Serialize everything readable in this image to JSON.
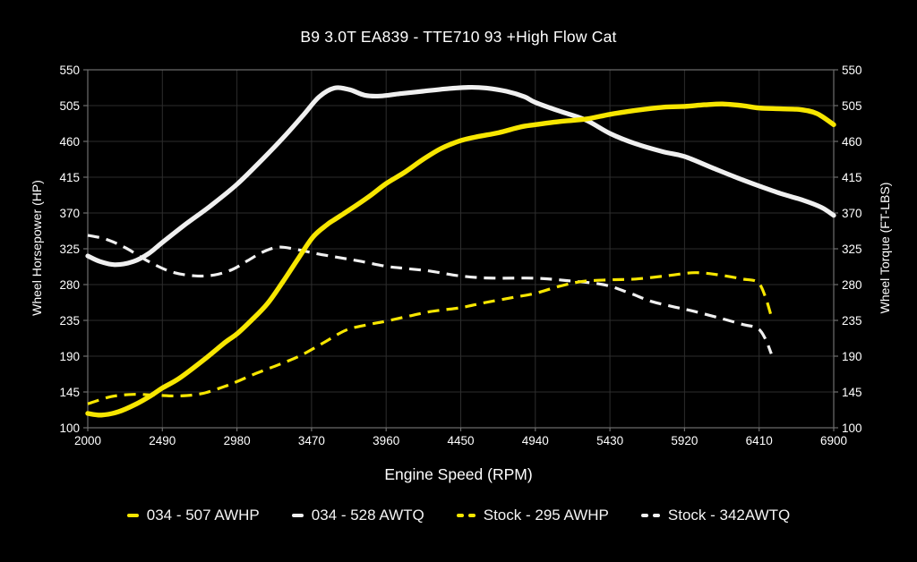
{
  "window": {
    "background": "#000000"
  },
  "chart_data": {
    "type": "line",
    "title": "B9 3.0T EA839 - TTE710 93 +High Flow Cat",
    "xlabel": "Engine Speed (RPM)",
    "ylabel_left": "Wheel Horsepower (HP)",
    "ylabel_right": "Wheel Torque (FT-LBS)",
    "xlim": [
      2000,
      6900
    ],
    "ylim": [
      100,
      550
    ],
    "x_ticks": [
      2000,
      2490,
      2980,
      3470,
      3960,
      4450,
      4940,
      5430,
      5920,
      6410,
      6900
    ],
    "y_ticks": [
      100,
      145,
      190,
      235,
      280,
      325,
      370,
      415,
      460,
      505,
      550
    ],
    "grid": true,
    "legend_position": "bottom",
    "colors": {
      "background": "#000000",
      "gridline": "#2d2d2d",
      "frame": "#6e6e6e",
      "text": "#ffffff",
      "yellow": "#f7e600",
      "white": "#f0f0f0"
    },
    "series": [
      {
        "name": "stock-awtq",
        "legend_label": "Stock - 342AWTQ",
        "color": "#f0f0f0",
        "dash": true,
        "width": 3.2,
        "points": [
          [
            2000,
            342
          ],
          [
            2120,
            337
          ],
          [
            2250,
            326
          ],
          [
            2400,
            309
          ],
          [
            2550,
            296
          ],
          [
            2700,
            291
          ],
          [
            2830,
            292
          ],
          [
            2950,
            299
          ],
          [
            3050,
            310
          ],
          [
            3150,
            321
          ],
          [
            3250,
            327
          ],
          [
            3350,
            325
          ],
          [
            3500,
            319
          ],
          [
            3650,
            314
          ],
          [
            3800,
            309
          ],
          [
            3960,
            303
          ],
          [
            4100,
            300
          ],
          [
            4250,
            297
          ],
          [
            4400,
            292
          ],
          [
            4550,
            289
          ],
          [
            4700,
            288
          ],
          [
            4940,
            288
          ],
          [
            5150,
            285
          ],
          [
            5385,
            280
          ],
          [
            5550,
            270
          ],
          [
            5700,
            259
          ],
          [
            5850,
            252
          ],
          [
            5990,
            246
          ],
          [
            6150,
            238
          ],
          [
            6300,
            230
          ],
          [
            6400,
            225
          ],
          [
            6450,
            212
          ],
          [
            6490,
            193
          ]
        ]
      },
      {
        "name": "stock-awhp",
        "legend_label": "Stock - 295 AWHP",
        "color": "#f7e600",
        "dash": true,
        "width": 3.2,
        "points": [
          [
            2000,
            130
          ],
          [
            2150,
            139
          ],
          [
            2300,
            142
          ],
          [
            2450,
            141
          ],
          [
            2600,
            140
          ],
          [
            2750,
            143
          ],
          [
            2900,
            152
          ],
          [
            2980,
            158
          ],
          [
            3100,
            168
          ],
          [
            3250,
            179
          ],
          [
            3400,
            191
          ],
          [
            3550,
            207
          ],
          [
            3700,
            223
          ],
          [
            3850,
            230
          ],
          [
            3960,
            234
          ],
          [
            4100,
            240
          ],
          [
            4250,
            246
          ],
          [
            4450,
            251
          ],
          [
            4600,
            257
          ],
          [
            4800,
            264
          ],
          [
            4940,
            269
          ],
          [
            5100,
            278
          ],
          [
            5250,
            284
          ],
          [
            5430,
            286
          ],
          [
            5600,
            287
          ],
          [
            5800,
            291
          ],
          [
            5990,
            295
          ],
          [
            6150,
            292
          ],
          [
            6300,
            287
          ],
          [
            6400,
            283
          ],
          [
            6450,
            265
          ],
          [
            6490,
            240
          ]
        ]
      },
      {
        "name": "034-awtq",
        "legend_label": "034 - 528 AWTQ",
        "color": "#f0f0f0",
        "dash": false,
        "width": 5.2,
        "points": [
          [
            2000,
            316
          ],
          [
            2080,
            309
          ],
          [
            2180,
            305
          ],
          [
            2300,
            309
          ],
          [
            2400,
            319
          ],
          [
            2490,
            333
          ],
          [
            2650,
            357
          ],
          [
            2800,
            378
          ],
          [
            2980,
            406
          ],
          [
            3150,
            438
          ],
          [
            3300,
            468
          ],
          [
            3420,
            494
          ],
          [
            3520,
            516
          ],
          [
            3620,
            527
          ],
          [
            3720,
            525
          ],
          [
            3820,
            518
          ],
          [
            3920,
            517
          ],
          [
            4050,
            520
          ],
          [
            4200,
            523
          ],
          [
            4350,
            526
          ],
          [
            4500,
            528
          ],
          [
            4620,
            527
          ],
          [
            4750,
            523
          ],
          [
            4870,
            516
          ],
          [
            4940,
            509
          ],
          [
            5100,
            498
          ],
          [
            5270,
            487
          ],
          [
            5430,
            470
          ],
          [
            5600,
            457
          ],
          [
            5780,
            447
          ],
          [
            5920,
            441
          ],
          [
            6100,
            427
          ],
          [
            6270,
            414
          ],
          [
            6410,
            404
          ],
          [
            6560,
            394
          ],
          [
            6700,
            386
          ],
          [
            6820,
            377
          ],
          [
            6900,
            367
          ]
        ]
      },
      {
        "name": "034-awhp",
        "legend_label": "034 - 507 AWHP",
        "color": "#f7e600",
        "dash": false,
        "width": 5.4,
        "points": [
          [
            2000,
            118
          ],
          [
            2090,
            116
          ],
          [
            2200,
            120
          ],
          [
            2320,
            130
          ],
          [
            2420,
            141
          ],
          [
            2490,
            150
          ],
          [
            2600,
            162
          ],
          [
            2760,
            185
          ],
          [
            2900,
            207
          ],
          [
            2980,
            218
          ],
          [
            3080,
            236
          ],
          [
            3180,
            256
          ],
          [
            3280,
            283
          ],
          [
            3380,
            312
          ],
          [
            3480,
            340
          ],
          [
            3570,
            355
          ],
          [
            3615,
            361
          ],
          [
            3720,
            374
          ],
          [
            3850,
            391
          ],
          [
            3960,
            407
          ],
          [
            4080,
            421
          ],
          [
            4200,
            437
          ],
          [
            4320,
            451
          ],
          [
            4450,
            461
          ],
          [
            4560,
            466
          ],
          [
            4700,
            471
          ],
          [
            4840,
            478
          ],
          [
            4940,
            481
          ],
          [
            5100,
            485
          ],
          [
            5270,
            488
          ],
          [
            5430,
            494
          ],
          [
            5600,
            499
          ],
          [
            5780,
            503
          ],
          [
            5920,
            504
          ],
          [
            6050,
            506
          ],
          [
            6170,
            507
          ],
          [
            6300,
            505
          ],
          [
            6410,
            502
          ],
          [
            6550,
            501
          ],
          [
            6680,
            500
          ],
          [
            6790,
            495
          ],
          [
            6900,
            481
          ]
        ]
      }
    ],
    "legend_order": [
      3,
      2,
      1,
      0
    ]
  }
}
